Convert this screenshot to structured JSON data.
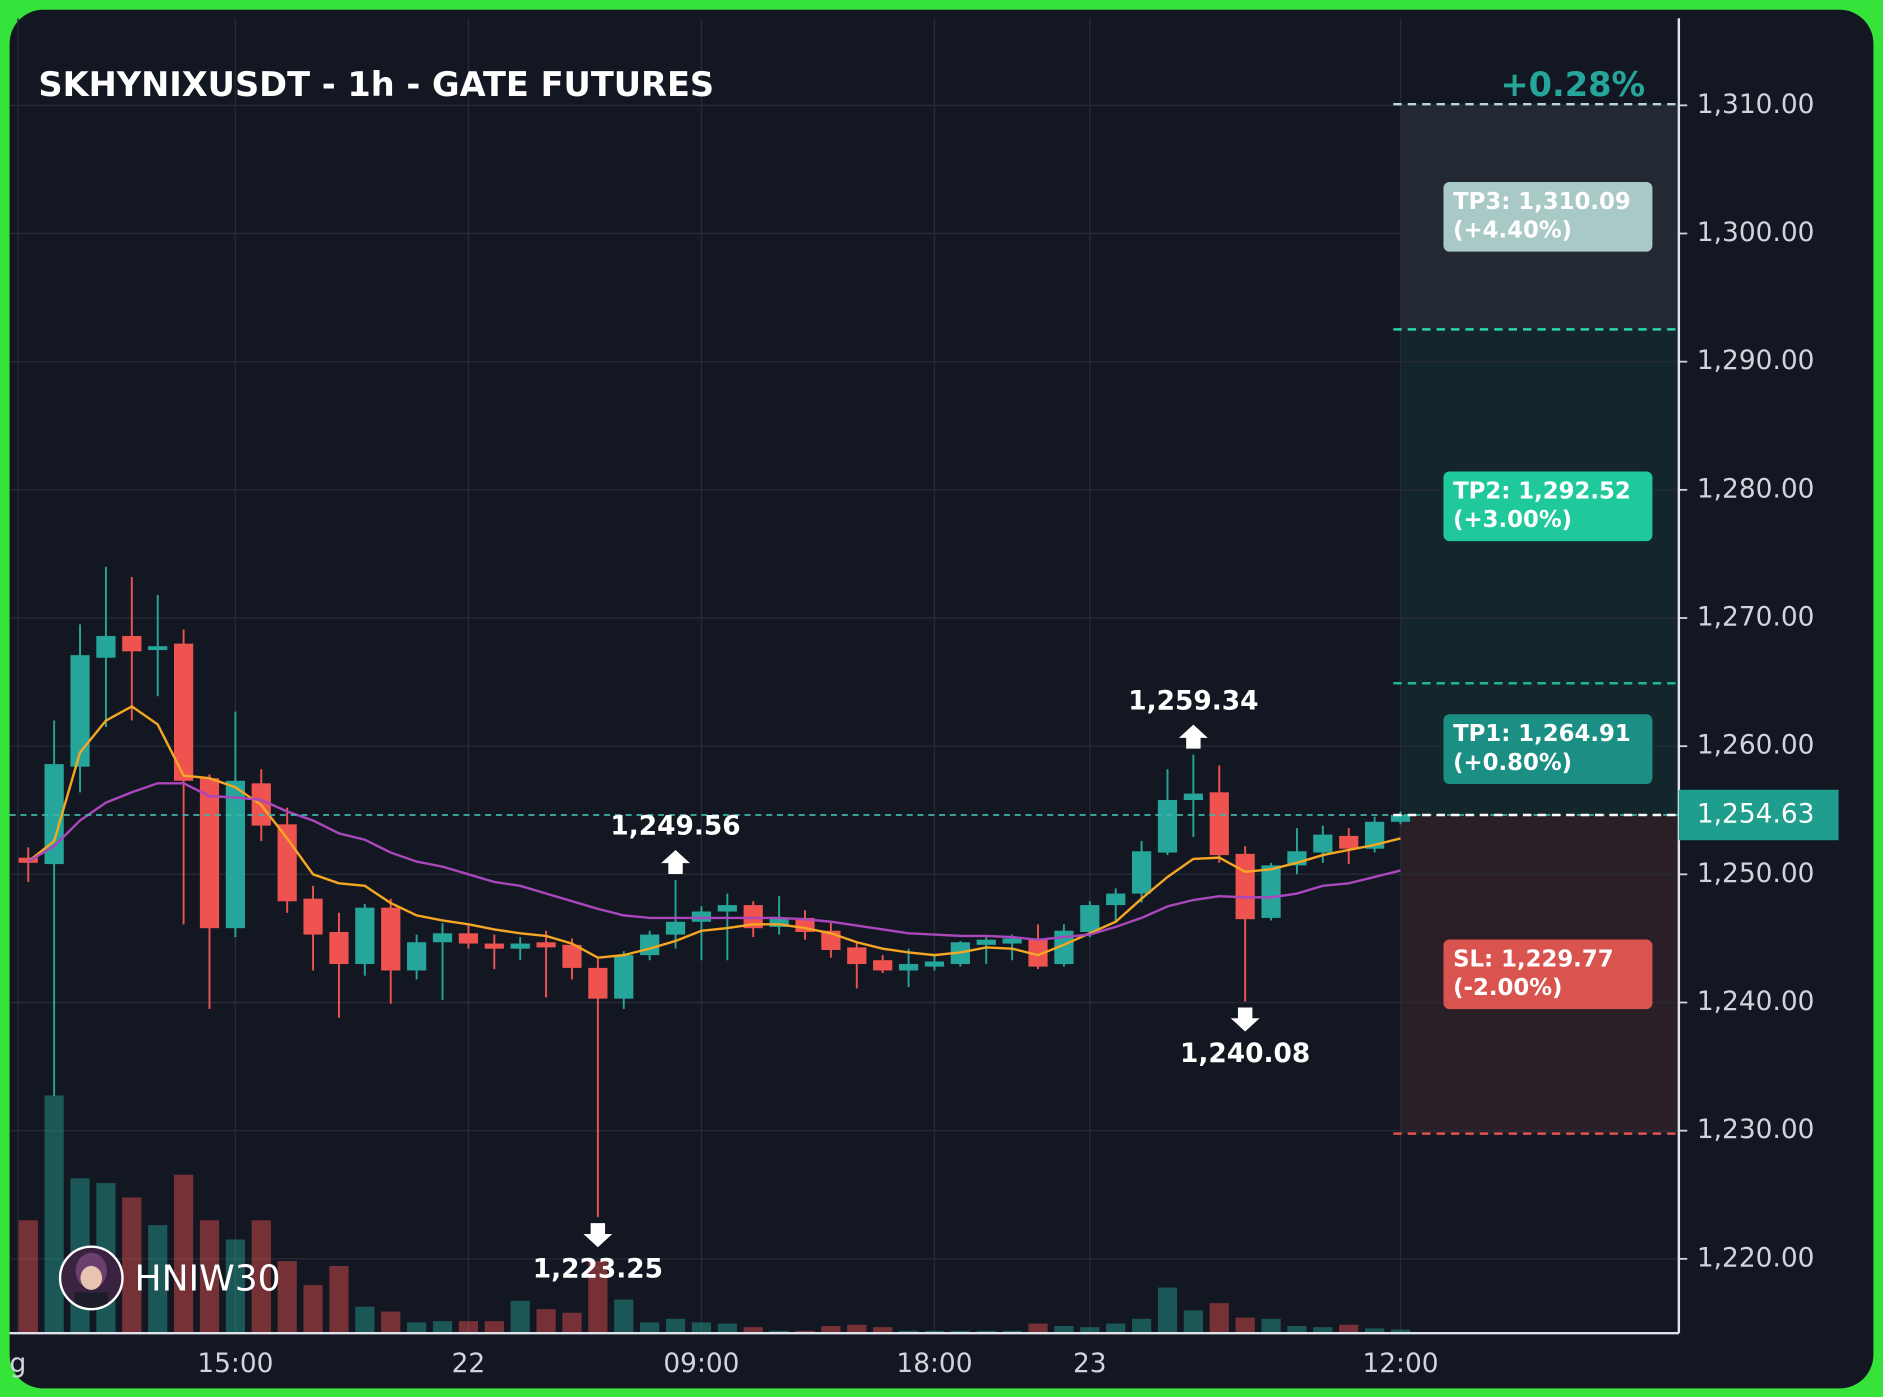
{
  "chart_data": {
    "type": "candlestick",
    "title": "SKHYNIXUSDT - 1h - GATE FUTURES",
    "change": {
      "value": 0.28,
      "label": "+0.28%"
    },
    "watermark": "HNIW30",
    "x": [
      7,
      8,
      9,
      10,
      11,
      12,
      13,
      14,
      15,
      16,
      17,
      18,
      19,
      20,
      21,
      22,
      23,
      24,
      25,
      26,
      27,
      28,
      29,
      30,
      31,
      32,
      33,
      34,
      35,
      36,
      37,
      38,
      39,
      40,
      41,
      42,
      43,
      44,
      45,
      46,
      47,
      48,
      49,
      50,
      51,
      52,
      53,
      54,
      55,
      56,
      57,
      58,
      59,
      60
    ],
    "open": [
      1251.3,
      1250.8,
      1258.4,
      1266.9,
      1268.6,
      1267.5,
      1268.0,
      1257.5,
      1245.8,
      1257.1,
      1253.9,
      1248.1,
      1245.5,
      1243.0,
      1247.4,
      1242.5,
      1244.7,
      1245.4,
      1244.6,
      1244.2,
      1244.7,
      1244.5,
      1242.7,
      1240.3,
      1243.7,
      1245.3,
      1246.3,
      1247.1,
      1247.6,
      1245.9,
      1246.6,
      1245.6,
      1244.3,
      1243.3,
      1242.5,
      1242.8,
      1243.0,
      1244.5,
      1244.6,
      1245.0,
      1243.0,
      1245.5,
      1247.6,
      1248.5,
      1251.7,
      1255.8,
      1256.4,
      1251.6,
      1246.6,
      1250.7,
      1251.7,
      1253.0,
      1252.0,
      1254.1
    ],
    "high": [
      1252.1,
      1262.0,
      1269.5,
      1274.0,
      1273.2,
      1271.8,
      1269.1,
      1257.8,
      1262.7,
      1258.2,
      1255.2,
      1249.1,
      1247.0,
      1247.7,
      1248.1,
      1245.3,
      1246.2,
      1246.2,
      1245.3,
      1245.1,
      1245.6,
      1245.0,
      1243.4,
      1244.0,
      1245.6,
      1249.56,
      1247.5,
      1248.5,
      1247.9,
      1248.3,
      1247.2,
      1246.2,
      1244.7,
      1243.7,
      1244.2,
      1243.7,
      1244.8,
      1245.1,
      1245.3,
      1246.1,
      1246.1,
      1247.9,
      1248.9,
      1252.6,
      1258.2,
      1259.34,
      1258.5,
      1252.2,
      1250.9,
      1253.6,
      1253.8,
      1253.6,
      1254.5,
      1254.9
    ],
    "low": [
      1249.4,
      1232.7,
      1256.4,
      1261.5,
      1262.0,
      1263.9,
      1246.1,
      1239.5,
      1245.1,
      1252.6,
      1247.0,
      1242.5,
      1238.8,
      1242.1,
      1239.9,
      1241.8,
      1240.2,
      1244.2,
      1242.6,
      1243.3,
      1240.4,
      1241.8,
      1223.25,
      1239.5,
      1243.3,
      1244.2,
      1243.3,
      1243.3,
      1245.1,
      1245.3,
      1244.9,
      1243.5,
      1241.1,
      1242.3,
      1241.2,
      1242.5,
      1242.8,
      1243.0,
      1243.3,
      1242.6,
      1242.8,
      1245.1,
      1246.3,
      1247.8,
      1251.5,
      1252.9,
      1250.9,
      1240.08,
      1246.4,
      1250.0,
      1250.9,
      1250.8,
      1251.7,
      1253.9
    ],
    "close": [
      1250.9,
      1258.6,
      1267.1,
      1268.6,
      1267.4,
      1267.8,
      1257.3,
      1245.8,
      1257.3,
      1253.8,
      1247.9,
      1245.3,
      1243.0,
      1247.4,
      1242.5,
      1244.7,
      1245.4,
      1244.6,
      1244.2,
      1244.6,
      1244.3,
      1242.7,
      1240.3,
      1243.7,
      1245.3,
      1246.3,
      1247.1,
      1247.6,
      1245.8,
      1246.6,
      1245.5,
      1244.1,
      1243.0,
      1242.5,
      1243.0,
      1243.2,
      1244.7,
      1244.9,
      1245.0,
      1242.8,
      1245.6,
      1247.6,
      1248.5,
      1251.8,
      1255.8,
      1256.3,
      1251.5,
      1246.5,
      1250.7,
      1251.8,
      1253.1,
      1252.0,
      1254.1,
      1254.63
    ],
    "volume": [
      94,
      198,
      129,
      125,
      113,
      90,
      132,
      94,
      78,
      94,
      60,
      40,
      56,
      22,
      18,
      9,
      10,
      10,
      10,
      27,
      20,
      17,
      60,
      28,
      9,
      12,
      9,
      8,
      5,
      2,
      2,
      6,
      7,
      5,
      2,
      2,
      2,
      2,
      2,
      8,
      6,
      5,
      8,
      12,
      38,
      19,
      25,
      13,
      12,
      6,
      5,
      7,
      4,
      3
    ],
    "up_color": "#26a69a",
    "down_color": "#ef5350",
    "lines": [
      {
        "color": "#f5a623",
        "values": [
          1251.0,
          1252.6,
          1259.5,
          1262.0,
          1263.1,
          1261.7,
          1257.7,
          1257.5,
          1256.8,
          1255.4,
          1252.8,
          1250.0,
          1249.3,
          1249.1,
          1247.75,
          1246.8,
          1246.4,
          1246.1,
          1245.7,
          1245.4,
          1245.2,
          1244.6,
          1243.5,
          1243.7,
          1244.2,
          1244.8,
          1245.6,
          1245.8,
          1246.1,
          1246.1,
          1245.8,
          1245.4,
          1244.7,
          1244.2,
          1243.9,
          1243.7,
          1243.9,
          1244.3,
          1244.2,
          1243.7,
          1244.5,
          1245.4,
          1246.3,
          1248.1,
          1249.8,
          1251.2,
          1251.3,
          1250.2,
          1250.4,
          1250.9,
          1251.5,
          1251.9,
          1252.3,
          1252.8
        ]
      },
      {
        "color": "#ab47bc",
        "values": [
          1251.0,
          1252.2,
          1254.2,
          1255.6,
          1256.4,
          1257.1,
          1257.1,
          1256.1,
          1256.0,
          1255.8,
          1254.9,
          1254.2,
          1253.2,
          1252.7,
          1251.7,
          1251.0,
          1250.6,
          1250.0,
          1249.4,
          1249.1,
          1248.5,
          1247.9,
          1247.3,
          1246.8,
          1246.6,
          1246.6,
          1246.6,
          1246.6,
          1246.6,
          1246.6,
          1246.5,
          1246.3,
          1246.0,
          1245.7,
          1245.4,
          1245.3,
          1245.2,
          1245.2,
          1245.1,
          1244.9,
          1245.1,
          1245.3,
          1245.9,
          1246.6,
          1247.5,
          1248.0,
          1248.3,
          1248.2,
          1248.2,
          1248.5,
          1249.1,
          1249.3,
          1249.8,
          1250.3
        ]
      }
    ],
    "annotations": [
      {
        "x": 32,
        "value": 1249.56,
        "label": "1,249.56"
      },
      {
        "x": 29,
        "value": 1223.25,
        "label": "1,223.25"
      },
      {
        "x": 52,
        "value": 1259.34,
        "label": "1,259.34"
      },
      {
        "x": 54,
        "value": 1240.08,
        "label": "1,240.08"
      }
    ],
    "entry": {
      "value": 1254.63,
      "label": "1,254.63",
      "color": "#3fb5a8",
      "box_color": "#1f9e8e"
    },
    "levels": [
      {
        "label": "TP3: 1,310.09",
        "value": 1310.09,
        "change": 4.4,
        "change_label": "(+4.40%)",
        "color": "#b8d8d5",
        "box_color": "#a9c9c6",
        "zone_color": "#262b35"
      },
      {
        "label": "TP2: 1,292.52",
        "value": 1292.52,
        "change": 3.0,
        "change_label": "(+3.00%)",
        "color": "#2bd5a8",
        "box_color": "#1fc99c",
        "zone_color": "#13282c"
      },
      {
        "label": "TP1: 1,264.91",
        "value": 1264.91,
        "change": 0.8,
        "change_label": "(+0.80%)",
        "color": "#1fb59a",
        "box_color": "#1c8f84"
      },
      {
        "label": "SL: 1,229.77",
        "value": 1229.77,
        "change": -2.0,
        "change_label": "(-2.00%)",
        "color": "#e0524f",
        "box_color": "#d9534f",
        "zone_color": "#2e1f28"
      }
    ],
    "xlim": [
      6.28,
      70.75
    ],
    "xticks": [
      {
        "value": 6.6,
        "label": "g"
      },
      {
        "value": 15,
        "label": "15:00"
      },
      {
        "value": 24,
        "label": "22"
      },
      {
        "value": 33,
        "label": "09:00"
      },
      {
        "value": 42,
        "label": "18:00"
      },
      {
        "value": 48,
        "label": "23"
      },
      {
        "value": 60,
        "label": "12:00"
      }
    ],
    "ylim": [
      1214.2,
      1316.8
    ],
    "yticks": [
      {
        "value": 1220,
        "label": "1,220.00"
      },
      {
        "value": 1230,
        "label": "1,230.00"
      },
      {
        "value": 1240,
        "label": "1,240.00"
      },
      {
        "value": 1250,
        "label": "1,250.00"
      },
      {
        "value": 1260,
        "label": "1,260.00"
      },
      {
        "value": 1270,
        "label": "1,270.00"
      },
      {
        "value": 1280,
        "label": "1,280.00"
      },
      {
        "value": 1290,
        "label": "1,290.00"
      },
      {
        "value": 1300,
        "label": "1,300.00"
      },
      {
        "value": 1310,
        "label": "1,310.00"
      }
    ],
    "grid": true
  }
}
